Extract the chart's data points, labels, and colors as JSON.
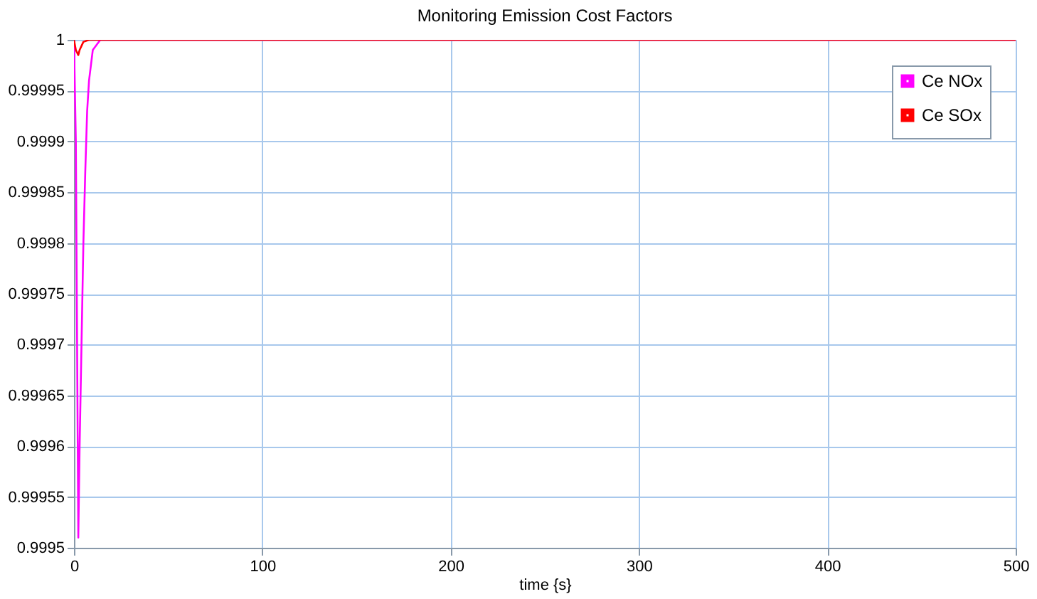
{
  "chart_data": {
    "type": "line",
    "title": "Monitoring Emission Cost Factors",
    "xlabel": "time {s}",
    "xlim": [
      0,
      500
    ],
    "xticks": [
      0,
      100,
      200,
      300,
      400,
      500
    ],
    "ylim": [
      0.9995,
      1
    ],
    "yticks": [
      0.9995,
      0.99955,
      0.9996,
      0.99965,
      0.9997,
      0.99975,
      0.9998,
      0.99985,
      0.9999,
      0.99995,
      1
    ],
    "grid": true,
    "legend": "top right",
    "marker": "none",
    "line_style": "solid",
    "series": [
      {
        "name": "Ce NOx",
        "color": "#ff00ff",
        "x": [
          0,
          1,
          2,
          2.3,
          3,
          4,
          5,
          6,
          7,
          8,
          10,
          14,
          500
        ],
        "values": [
          1,
          0.9999,
          0.9996,
          0.99951,
          0.9996,
          0.9997,
          0.9998,
          0.99987,
          0.99993,
          0.99996,
          0.99999,
          1,
          1
        ]
      },
      {
        "name": "Ce SOx",
        "color": "#ff0000",
        "x": [
          0,
          1,
          2.3,
          3,
          5,
          8,
          500
        ],
        "values": [
          1,
          0.99999,
          0.999985,
          0.99999,
          0.999998,
          1,
          1
        ]
      }
    ]
  }
}
